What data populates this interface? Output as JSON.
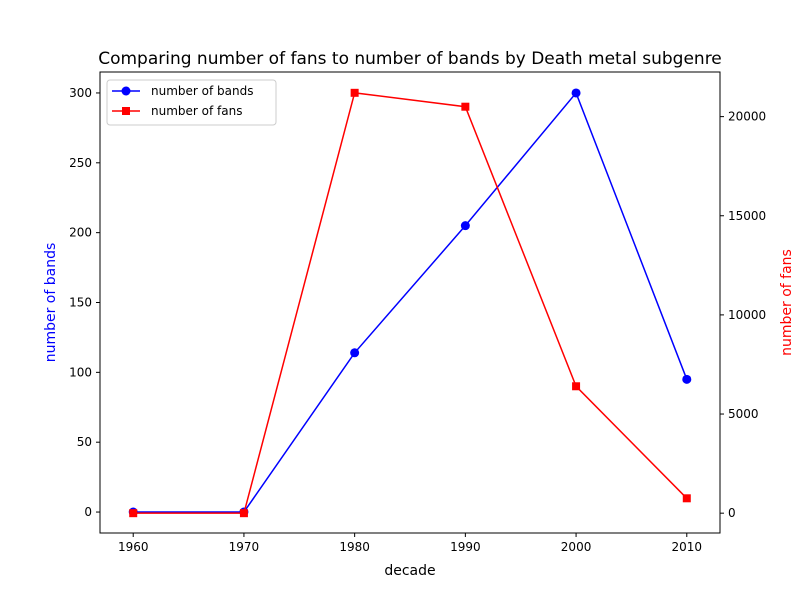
{
  "chart_data": {
    "type": "line",
    "title": "Comparing number of fans to number of bands by Death metal subgenre",
    "xlabel": "decade",
    "x": [
      1960,
      1970,
      1980,
      1990,
      2000,
      2010
    ],
    "x_ticks": [
      1960,
      1970,
      1980,
      1990,
      2000,
      2010
    ],
    "xlim": [
      1957,
      2013
    ],
    "left_axis": {
      "label": "number of bands",
      "color": "#0000ff",
      "ylim": [
        -15,
        315
      ],
      "ticks": [
        0,
        50,
        100,
        150,
        200,
        250,
        300
      ]
    },
    "right_axis": {
      "label": "number of fans",
      "color": "#ff0000",
      "ylim": [
        -1000,
        22250
      ],
      "ticks": [
        0,
        5000,
        10000,
        15000,
        20000
      ]
    },
    "series": [
      {
        "name": "number of bands",
        "axis": "left",
        "color": "#0000ff",
        "marker": "circle",
        "values": [
          0,
          0,
          114,
          205,
          300,
          95
        ]
      },
      {
        "name": "number of fans",
        "axis": "right",
        "color": "#ff0000",
        "marker": "square",
        "values": [
          0,
          0,
          21200,
          20500,
          6400,
          750
        ]
      }
    ],
    "legend": {
      "placement": "upper-left",
      "entries": [
        "number of bands",
        "number of fans"
      ]
    },
    "grid": false
  }
}
